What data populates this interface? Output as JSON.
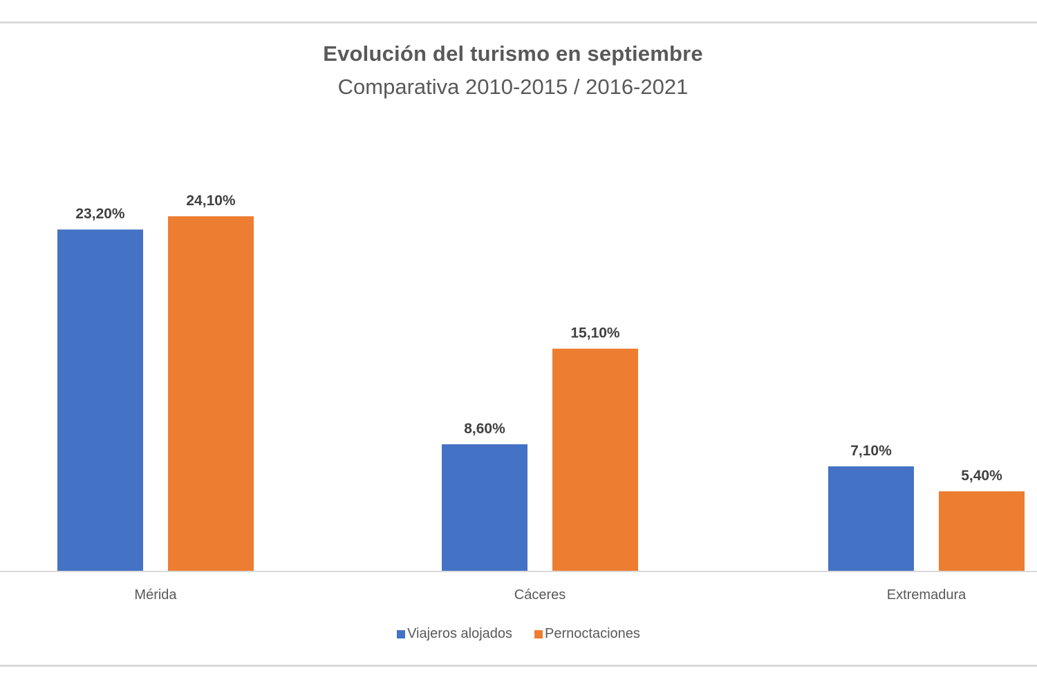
{
  "chart_data": {
    "type": "bar",
    "title": "Evolución del turismo en septiembre",
    "subtitle": "Comparativa 2010-2015 / 2016-2021",
    "categories": [
      "Mérida",
      "Cáceres",
      "Extremadura"
    ],
    "series": [
      {
        "name": "Viajeros alojados",
        "color": "#4472c4",
        "values": [
          23.2,
          8.6,
          7.1
        ],
        "labels": [
          "23,20%",
          "8,60%",
          "7,10%"
        ]
      },
      {
        "name": "Pernoctaciones",
        "color": "#ed7d31",
        "values": [
          24.1,
          15.1,
          5.4
        ],
        "labels": [
          "24,10%",
          "15,10%",
          "5,40%"
        ]
      }
    ],
    "ylim": [
      0,
      24.1
    ],
    "grid": false,
    "legend": "bottom-center",
    "xlabel": "",
    "ylabel": ""
  }
}
